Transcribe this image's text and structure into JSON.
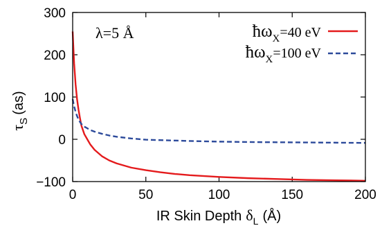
{
  "chart_data": {
    "type": "line",
    "title": "",
    "xlabel": "IR Skin Depth",
    "xlabel_symbol": "δ",
    "xlabel_subscript": "L",
    "xlabel_unit": "(Å)",
    "ylabel_symbol": "τ",
    "ylabel_subscript": "S",
    "ylabel_unit": "(as)",
    "xlim": [
      0,
      200
    ],
    "ylim": [
      -100,
      300
    ],
    "x_ticks": [
      0,
      50,
      100,
      150,
      200
    ],
    "y_ticks": [
      -100,
      0,
      100,
      200,
      300
    ],
    "x_tick_labels": [
      "0",
      "50",
      "100",
      "150",
      "200"
    ],
    "y_tick_labels": [
      "−100",
      "0",
      "100",
      "200",
      "300"
    ],
    "grid": false,
    "legend_position": "top-right",
    "annotation": "λ=5 Å",
    "series": [
      {
        "legend_prefix": "ħω",
        "legend_subscript": "X",
        "legend_suffix": "=40 eV",
        "color": "#e41a1c",
        "style": "solid",
        "x": [
          0,
          1,
          2,
          3,
          4,
          5,
          6,
          8,
          10,
          12,
          15,
          20,
          25,
          30,
          40,
          50,
          60,
          70,
          80,
          100,
          120,
          140,
          160,
          180,
          200
        ],
        "y": [
          255,
          180,
          130,
          95,
          70,
          50,
          32,
          12,
          0,
          -12,
          -25,
          -40,
          -50,
          -57,
          -67,
          -73,
          -78,
          -82,
          -85,
          -89,
          -92,
          -94,
          -96,
          -97,
          -98
        ]
      },
      {
        "legend_prefix": "ħω",
        "legend_subscript": "X",
        "legend_suffix": "=100 eV",
        "color": "#2c4a9b",
        "style": "dashed",
        "x": [
          0,
          1,
          2,
          3,
          4,
          5,
          6,
          8,
          10,
          12,
          15,
          20,
          25,
          30,
          40,
          50,
          60,
          70,
          80,
          100,
          120,
          140,
          160,
          180,
          200
        ],
        "y": [
          95,
          78,
          65,
          55,
          47,
          41,
          36,
          30,
          26,
          22,
          18,
          13,
          9,
          6,
          2,
          -1,
          -2,
          -3,
          -4,
          -5.5,
          -6.5,
          -7,
          -7.5,
          -8,
          -8.5
        ]
      }
    ]
  }
}
